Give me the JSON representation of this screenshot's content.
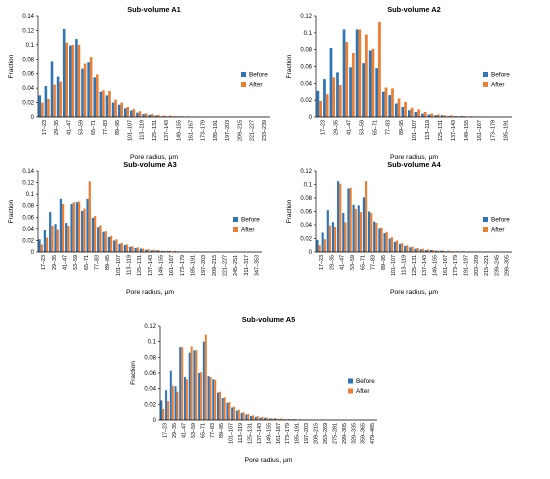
{
  "colors": {
    "before": "#2e75b6",
    "after": "#ed7d31",
    "axis": "#000000"
  },
  "chart_data": [
    {
      "type": "bar",
      "title": "Sub-volume A1",
      "ylabel": "Fraction",
      "xlabel": "Pore radius, µm",
      "ylim": [
        0,
        0.14
      ],
      "yticks": [
        0,
        0.02,
        0.04,
        0.06,
        0.08,
        0.1,
        0.12,
        0.14
      ],
      "grid": false,
      "legend_position": "right",
      "tick_labels": [
        "17–23",
        "29–35",
        "41–47",
        "53–59",
        "65–71",
        "77–83",
        "89–95",
        "101–107",
        "113–119",
        "125–131",
        "137–143",
        "149–155",
        "161–167",
        "173–179",
        "185–191",
        "197–203",
        "209–215",
        "221–227",
        "233–239"
      ],
      "series": [
        {
          "name": "Before",
          "values": [
            0.03,
            0.043,
            0.077,
            0.056,
            0.122,
            0.099,
            0.108,
            0.067,
            0.076,
            0.055,
            0.035,
            0.03,
            0.02,
            0.017,
            0.012,
            0.009,
            0.006,
            0.004,
            0.003,
            0.002,
            0.001,
            0.001,
            0.001,
            0.001,
            0.0005,
            0.0005,
            0.0003,
            0.0003,
            0.0002,
            0.0002,
            0.0001,
            0.0001,
            0.0001,
            0.0001,
            0.0001,
            0.0001,
            0.0001,
            0.0001
          ]
        },
        {
          "name": "After",
          "values": [
            0.02,
            0.025,
            0.045,
            0.049,
            0.103,
            0.1,
            0.1,
            0.074,
            0.083,
            0.059,
            0.037,
            0.036,
            0.024,
            0.02,
            0.014,
            0.011,
            0.008,
            0.005,
            0.004,
            0.003,
            0.002,
            0.002,
            0.001,
            0.001,
            0.001,
            0.0005,
            0.0004,
            0.0003,
            0.0003,
            0.0002,
            0.0002,
            0.0001,
            0.0001,
            0.0001,
            0.0001,
            0.0001,
            0.0001,
            0.0001
          ]
        }
      ]
    },
    {
      "type": "bar",
      "title": "Sub-volume A2",
      "ylabel": "Fraction",
      "xlabel": "Pore radius, µm",
      "ylim": [
        0,
        0.12
      ],
      "yticks": [
        0,
        0.02,
        0.04,
        0.06,
        0.08,
        0.1,
        0.12
      ],
      "grid": false,
      "legend_position": "right",
      "tick_labels": [
        "17–23",
        "29–35",
        "41–47",
        "53–59",
        "65–71",
        "77–83",
        "89–95",
        "101–107",
        "113–119",
        "125–131",
        "137–143",
        "149–155",
        "161–167",
        "173–179",
        "185–191"
      ],
      "series": [
        {
          "name": "Before",
          "values": [
            0.031,
            0.045,
            0.082,
            0.053,
            0.104,
            0.059,
            0.104,
            0.064,
            0.079,
            0.058,
            0.03,
            0.026,
            0.016,
            0.012,
            0.008,
            0.006,
            0.004,
            0.003,
            0.002,
            0.002,
            0.001,
            0.001,
            0.001,
            0.0005,
            0.0005,
            0.0003,
            0.0003,
            0.0002,
            0.0002,
            0.0001
          ]
        },
        {
          "name": "After",
          "values": [
            0.019,
            0.027,
            0.047,
            0.038,
            0.089,
            0.076,
            0.104,
            0.098,
            0.081,
            0.113,
            0.035,
            0.034,
            0.022,
            0.018,
            0.011,
            0.009,
            0.006,
            0.004,
            0.003,
            0.002,
            0.002,
            0.001,
            0.001,
            0.001,
            0.0005,
            0.0005,
            0.0003,
            0.0003,
            0.0002,
            0.0002
          ]
        }
      ]
    },
    {
      "type": "bar",
      "title": "Sub-volume A3",
      "ylabel": "Fraction",
      "xlabel": "Pore radius, µm",
      "ylim": [
        0,
        0.14
      ],
      "yticks": [
        0,
        0.02,
        0.04,
        0.06,
        0.08,
        0.1,
        0.12,
        0.14
      ],
      "grid": false,
      "legend_position": "right",
      "tick_labels": [
        "17–23",
        "29–35",
        "41–47",
        "53–59",
        "65–71",
        "77–83",
        "89–95",
        "101–107",
        "113–119",
        "125–131",
        "137–143",
        "149–155",
        "161–167",
        "173–179",
        "185–191",
        "197–203",
        "209–215",
        "221–227",
        "245–251",
        "311–317",
        "347–353"
      ],
      "series": [
        {
          "name": "Before",
          "values": [
            0.022,
            0.038,
            0.069,
            0.048,
            0.092,
            0.05,
            0.083,
            0.086,
            0.071,
            0.092,
            0.059,
            0.043,
            0.035,
            0.026,
            0.02,
            0.014,
            0.012,
            0.009,
            0.007,
            0.006,
            0.004,
            0.003,
            0.003,
            0.002,
            0.002,
            0.001,
            0.001,
            0.001,
            0.001,
            0.0005,
            0.0005,
            0.0005,
            0.0003,
            0.0003,
            0.0002,
            0.0002,
            0.0002,
            0.0001,
            0.0001,
            0.0001,
            0.0001,
            0.0001
          ]
        },
        {
          "name": "After",
          "values": [
            0.013,
            0.025,
            0.045,
            0.039,
            0.083,
            0.045,
            0.086,
            0.087,
            0.075,
            0.122,
            0.062,
            0.046,
            0.036,
            0.028,
            0.022,
            0.016,
            0.013,
            0.01,
            0.008,
            0.006,
            0.005,
            0.004,
            0.003,
            0.002,
            0.002,
            0.002,
            0.001,
            0.001,
            0.001,
            0.001,
            0.0005,
            0.0005,
            0.0004,
            0.0003,
            0.0003,
            0.0002,
            0.0002,
            0.0001,
            0.0001,
            0.0001,
            0.0001,
            0.0001
          ]
        }
      ]
    },
    {
      "type": "bar",
      "title": "Sub-volume A4",
      "ylabel": "Fraction",
      "xlabel": "Pore radius, µm",
      "ylim": [
        0,
        0.12
      ],
      "yticks": [
        0,
        0.02,
        0.04,
        0.06,
        0.08,
        0.1,
        0.12
      ],
      "grid": false,
      "legend_position": "right",
      "tick_labels": [
        "17–23",
        "29–35",
        "41–47",
        "53–59",
        "65–71",
        "77–83",
        "89–95",
        "101–107",
        "113–119",
        "125–131",
        "137–143",
        "149–155",
        "161–167",
        "173–179",
        "191–197",
        "203–209",
        "215–221",
        "239–245",
        "299–305"
      ],
      "series": [
        {
          "name": "Before",
          "values": [
            0.018,
            0.029,
            0.062,
            0.044,
            0.105,
            0.058,
            0.094,
            0.07,
            0.069,
            0.081,
            0.06,
            0.045,
            0.035,
            0.028,
            0.02,
            0.015,
            0.012,
            0.009,
            0.007,
            0.005,
            0.004,
            0.003,
            0.003,
            0.002,
            0.002,
            0.001,
            0.001,
            0.001,
            0.001,
            0.0005,
            0.0005,
            0.0004,
            0.0003,
            0.0003,
            0.0002,
            0.0002,
            0.0001,
            0.0001
          ]
        },
        {
          "name": "After",
          "values": [
            0.01,
            0.019,
            0.039,
            0.037,
            0.101,
            0.044,
            0.095,
            0.064,
            0.059,
            0.105,
            0.058,
            0.043,
            0.036,
            0.03,
            0.022,
            0.017,
            0.013,
            0.01,
            0.008,
            0.006,
            0.005,
            0.004,
            0.003,
            0.002,
            0.002,
            0.002,
            0.001,
            0.001,
            0.001,
            0.001,
            0.0005,
            0.0005,
            0.0004,
            0.0003,
            0.0002,
            0.0002,
            0.0001,
            0.0001
          ]
        }
      ]
    },
    {
      "type": "bar",
      "title": "Sub-volume A5",
      "ylabel": "Fraction",
      "xlabel": "Pore radius, µm",
      "ylim": [
        0,
        0.12
      ],
      "yticks": [
        0,
        0.02,
        0.04,
        0.06,
        0.08,
        0.1,
        0.12
      ],
      "grid": false,
      "legend_position": "right",
      "tick_labels": [
        "17–23",
        "29–35",
        "41–47",
        "53–59",
        "65–71",
        "77–83",
        "89–95",
        "101–107",
        "113–119",
        "125–131",
        "137–143",
        "149–155",
        "161–167",
        "173–179",
        "185–191",
        "197–203",
        "209–215",
        "263–269",
        "275–281",
        "299–305",
        "329–335",
        "359–365",
        "479–485"
      ],
      "series": [
        {
          "name": "Before",
          "values": [
            0.025,
            0.038,
            0.063,
            0.043,
            0.093,
            0.055,
            0.086,
            0.089,
            0.06,
            0.1,
            0.056,
            0.052,
            0.035,
            0.028,
            0.022,
            0.016,
            0.012,
            0.009,
            0.007,
            0.005,
            0.004,
            0.003,
            0.003,
            0.002,
            0.002,
            0.001,
            0.001,
            0.001,
            0.001,
            0.0005,
            0.0005,
            0.0005,
            0.0004,
            0.0003,
            0.0003,
            0.0002,
            0.0002,
            0.0002,
            0.0001,
            0.0001,
            0.0001,
            0.0001,
            0.0001,
            0.0001,
            0.0001,
            0.0001
          ]
        },
        {
          "name": "After",
          "values": [
            0.014,
            0.024,
            0.044,
            0.036,
            0.093,
            0.052,
            0.094,
            0.089,
            0.061,
            0.109,
            0.055,
            0.051,
            0.036,
            0.029,
            0.023,
            0.017,
            0.013,
            0.01,
            0.008,
            0.006,
            0.005,
            0.004,
            0.003,
            0.002,
            0.002,
            0.002,
            0.001,
            0.001,
            0.001,
            0.001,
            0.0005,
            0.0005,
            0.0004,
            0.0003,
            0.0003,
            0.0002,
            0.0002,
            0.0002,
            0.0001,
            0.0001,
            0.0001,
            0.0001,
            0.0001,
            0.0001,
            0.0001,
            0.0001
          ]
        }
      ]
    }
  ]
}
